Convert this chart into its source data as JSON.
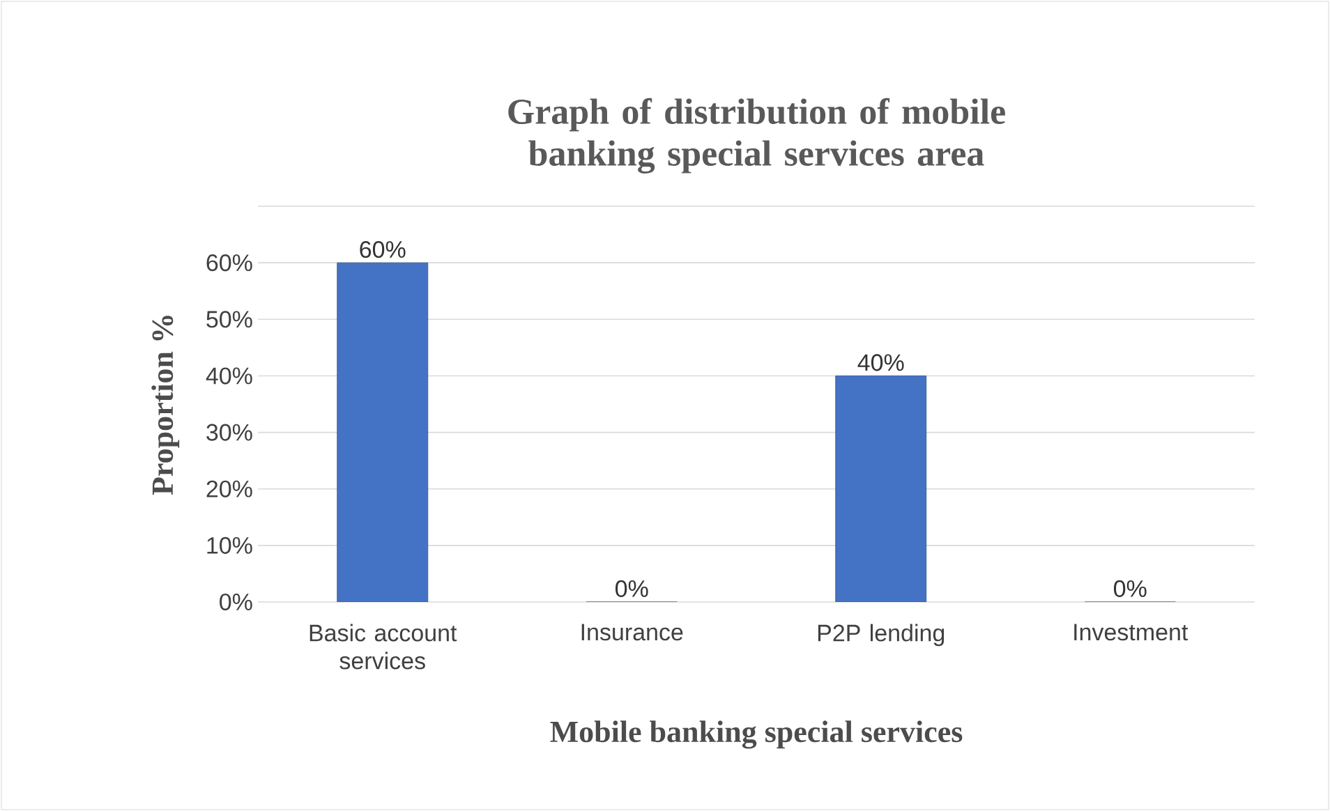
{
  "chart_data": {
    "type": "bar",
    "title": "Graph of distribution of mobile banking special services area",
    "xlabel": "Mobile banking special services",
    "ylabel": "Proportion %",
    "categories": [
      "Basic account services",
      "Insurance",
      "P2P lending",
      "Investment"
    ],
    "values": [
      60,
      0,
      40,
      0
    ],
    "value_labels": [
      "60%",
      "0%",
      "40%",
      "0%"
    ],
    "color": "#4472c4",
    "ylim": [
      0,
      70
    ],
    "yticks": [
      {
        "value": 0,
        "label": "0%"
      },
      {
        "value": 10,
        "label": "10%"
      },
      {
        "value": 20,
        "label": "20%"
      },
      {
        "value": 30,
        "label": "30%"
      },
      {
        "value": 40,
        "label": "40%"
      },
      {
        "value": 50,
        "label": "50%"
      },
      {
        "value": 60,
        "label": "60%"
      },
      {
        "value": 70,
        "label": null
      }
    ],
    "grid": "y"
  }
}
